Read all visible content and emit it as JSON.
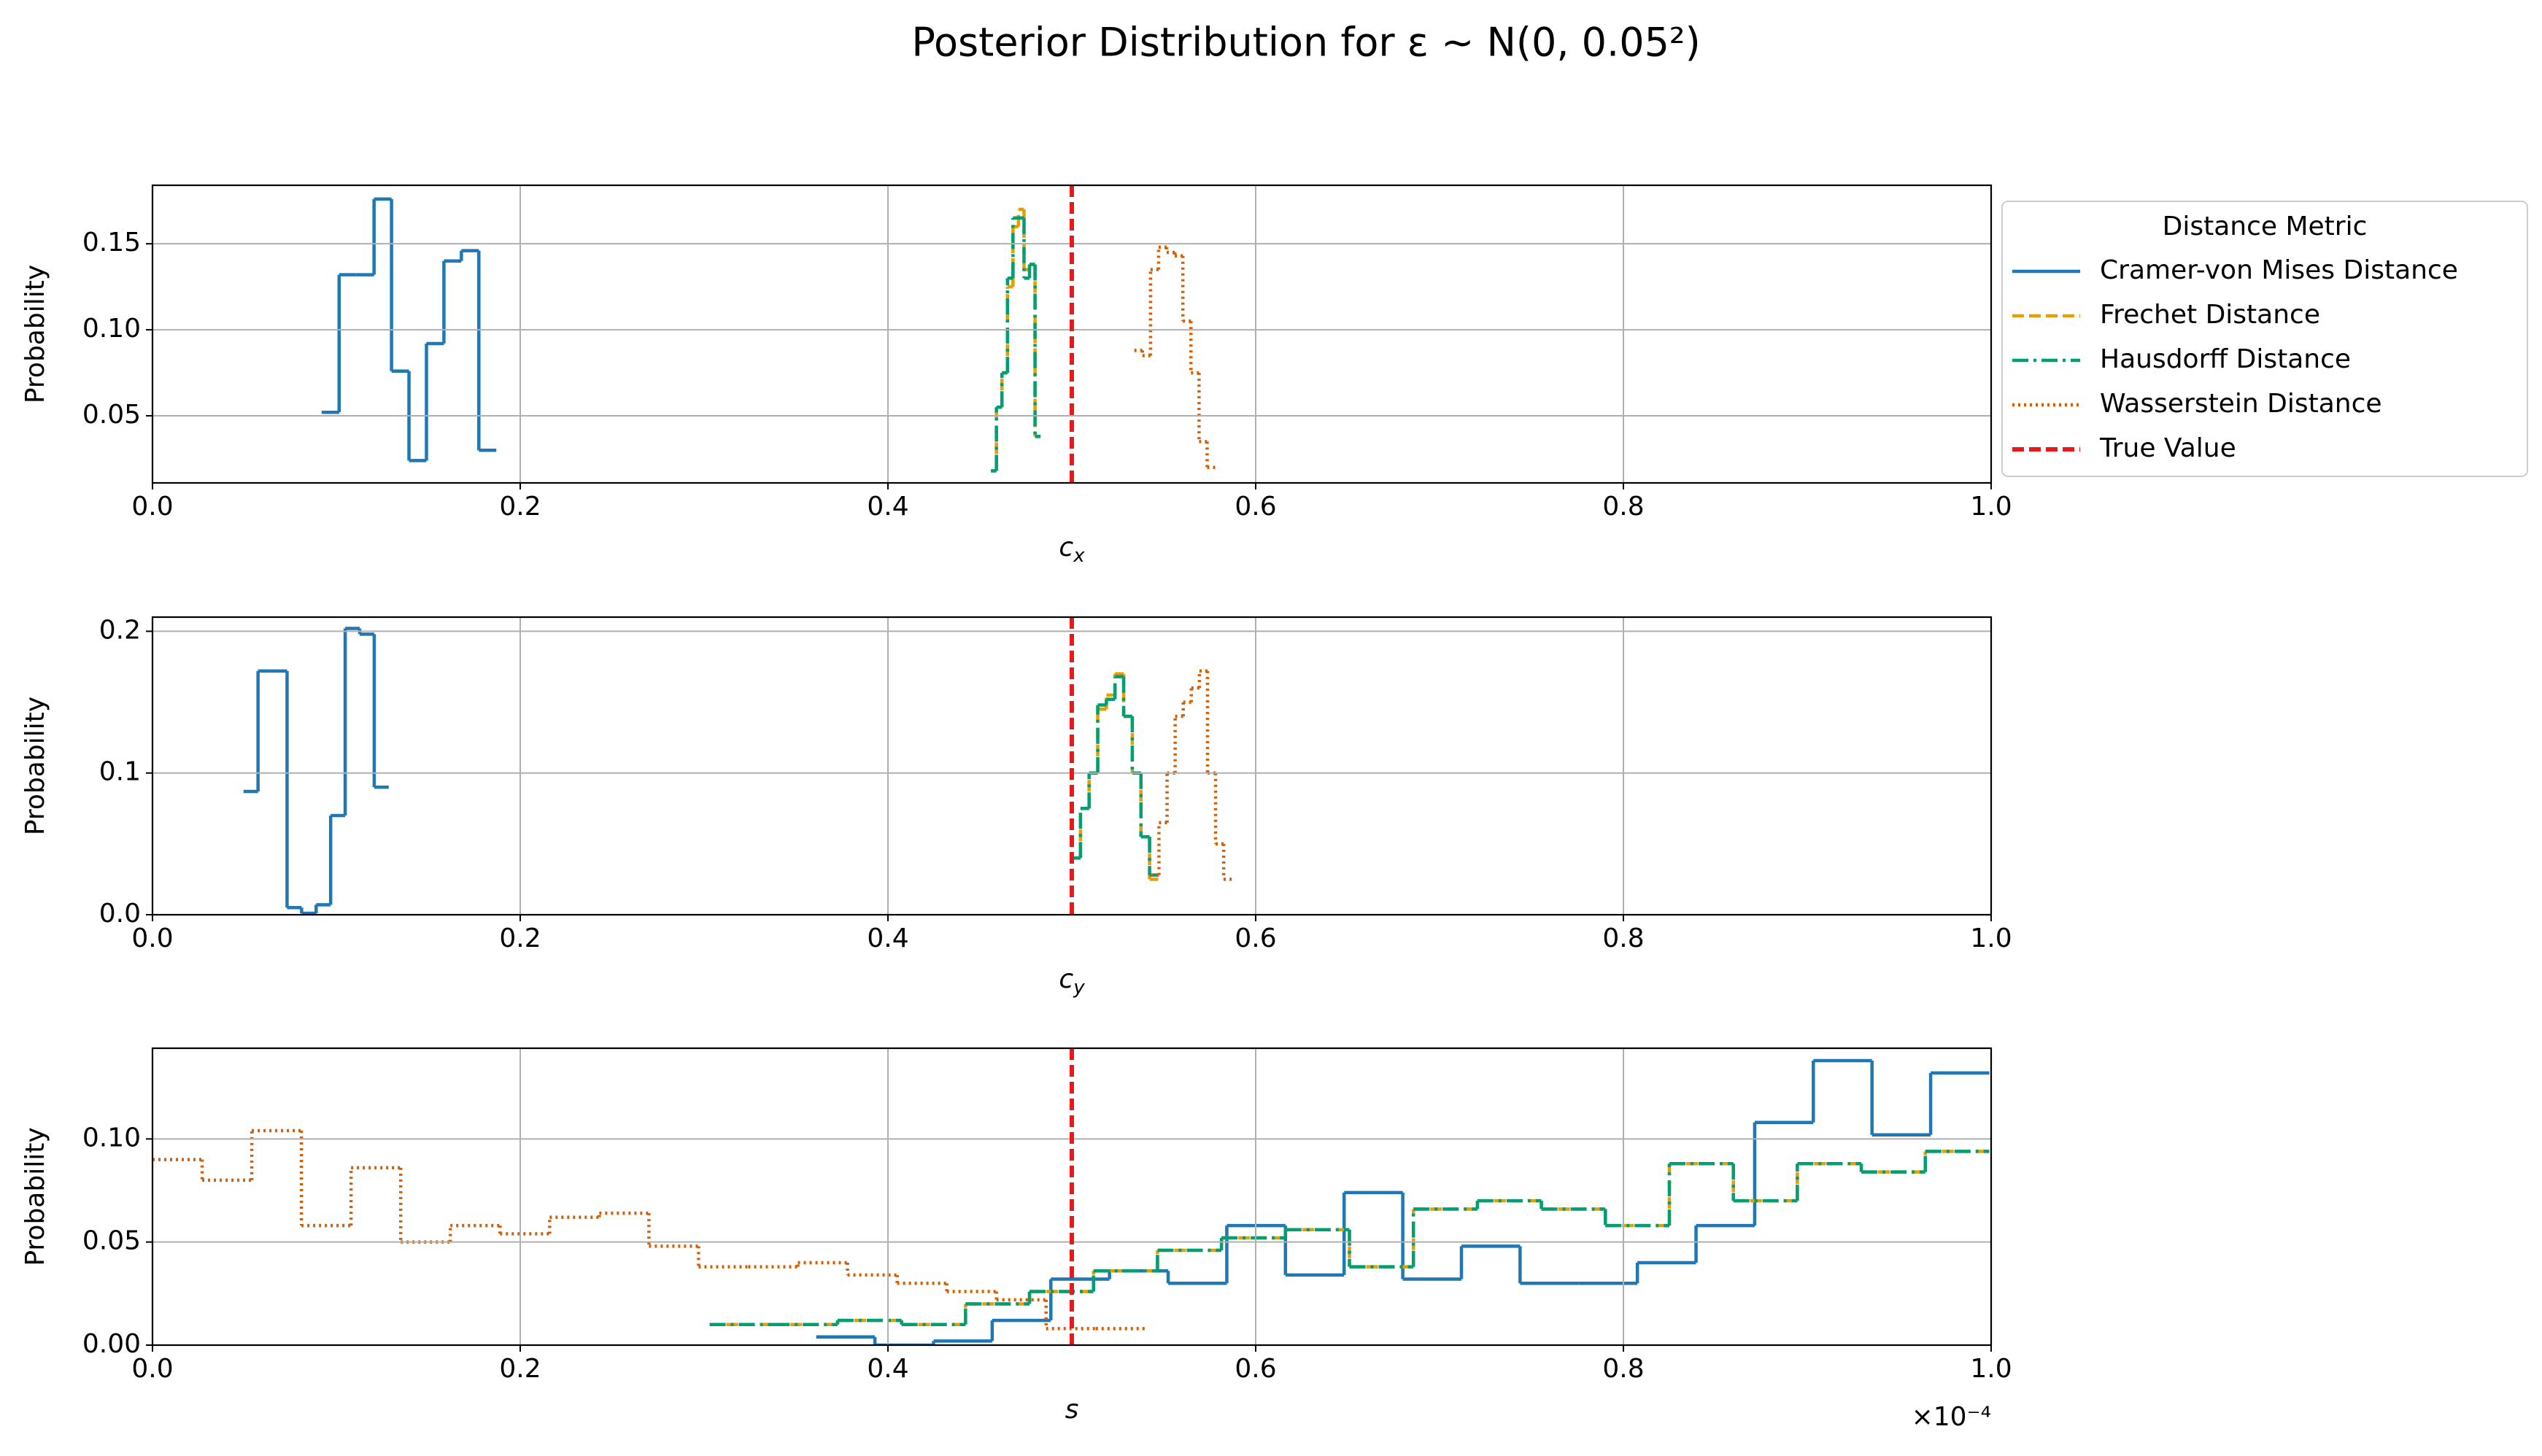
{
  "title": "Posterior Distribution for ε ∼ N(0, 0.05²)",
  "legend": {
    "title": "Distance Metric",
    "location": "outside upper right"
  },
  "chart_data": [
    {
      "type": "step",
      "xlabel": {
        "text": "c",
        "subscript": "x"
      },
      "ylabel": "Probability",
      "grid": true,
      "xlim": [
        0,
        1
      ],
      "ylim": [
        0.011,
        0.184
      ],
      "xticks": [
        {
          "value": 0,
          "label": "0.0"
        },
        0.2,
        0.4,
        0.6,
        0.8,
        {
          "value": 1,
          "label": "1.0"
        }
      ],
      "yticks": [
        0.05,
        {
          "value": 0.1,
          "label": "0.10"
        },
        0.15
      ],
      "reference_line": {
        "value": 0.5,
        "label": "True Value",
        "color": "#e41a1c",
        "linestyle": "dashed"
      },
      "series": [
        {
          "name": "Cramer-von Mises Distance",
          "color": "#1f77b4",
          "linestyle": "solid",
          "bins": [
            0.092,
            0.1015,
            0.111,
            0.1205,
            0.13,
            0.1395,
            0.149,
            0.1585,
            0.168,
            0.1775,
            0.187
          ],
          "values": [
            0.052,
            0.132,
            0.132,
            0.176,
            0.076,
            0.024,
            0.092,
            0.14,
            0.146,
            0.03
          ]
        },
        {
          "name": "Frechet Distance",
          "color": "#e69f00",
          "linestyle": "dashed",
          "bins": [
            0.456,
            0.459,
            0.462,
            0.465,
            0.468,
            0.471,
            0.474,
            0.477,
            0.48,
            0.483
          ],
          "values": [
            0.018,
            0.055,
            0.075,
            0.125,
            0.16,
            0.17,
            0.135,
            0.138,
            0.038
          ]
        },
        {
          "name": "Hausdorff Distance",
          "color": "#009e73",
          "linestyle": "dashdot",
          "bins": [
            0.456,
            0.459,
            0.462,
            0.465,
            0.468,
            0.471,
            0.474,
            0.477,
            0.48,
            0.483
          ],
          "values": [
            0.018,
            0.055,
            0.075,
            0.13,
            0.165,
            0.165,
            0.13,
            0.138,
            0.038
          ]
        },
        {
          "name": "Wasserstein Distance",
          "color": "#d55e00",
          "linestyle": "dotted",
          "bins": [
            0.534,
            0.5384,
            0.5428,
            0.5472,
            0.5516,
            0.556,
            0.5604,
            0.5648,
            0.5692,
            0.5736,
            0.578
          ],
          "values": [
            0.088,
            0.085,
            0.135,
            0.148,
            0.145,
            0.143,
            0.105,
            0.075,
            0.035,
            0.02
          ]
        }
      ]
    },
    {
      "type": "step",
      "xlabel": {
        "text": "c",
        "subscript": "y"
      },
      "ylabel": "Probability",
      "grid": true,
      "xlim": [
        0,
        1
      ],
      "ylim": [
        0,
        0.21
      ],
      "xticks": [
        {
          "value": 0,
          "label": "0.0"
        },
        0.2,
        0.4,
        0.6,
        0.8,
        {
          "value": 1,
          "label": "1.0"
        }
      ],
      "yticks": [
        {
          "value": 0,
          "label": "0.0"
        },
        0.1,
        0.2
      ],
      "reference_line": {
        "value": 0.5,
        "color": "#e41a1c",
        "linestyle": "dashed"
      },
      "series": [
        {
          "color": "#1f77b4",
          "linestyle": "solid",
          "bins": [
            0.0495,
            0.0574,
            0.0653,
            0.0732,
            0.0811,
            0.089,
            0.0969,
            0.1048,
            0.1127,
            0.1206,
            0.1285
          ],
          "values": [
            0.087,
            0.172,
            0.172,
            0.005,
            0.001,
            0.007,
            0.07,
            0.202,
            0.198,
            0.09
          ]
        },
        {
          "color": "#e69f00",
          "linestyle": "dashed",
          "bins": [
            0.5,
            0.5047,
            0.5094,
            0.5141,
            0.5188,
            0.5235,
            0.5282,
            0.5329,
            0.5376,
            0.5423,
            0.547
          ],
          "values": [
            0.04,
            0.075,
            0.1,
            0.145,
            0.155,
            0.17,
            0.14,
            0.1,
            0.055,
            0.025
          ]
        },
        {
          "color": "#009e73",
          "linestyle": "dashdot",
          "bins": [
            0.5,
            0.5047,
            0.5094,
            0.5141,
            0.5188,
            0.5235,
            0.5282,
            0.5329,
            0.5376,
            0.5423,
            0.547
          ],
          "values": [
            0.04,
            0.075,
            0.1,
            0.148,
            0.152,
            0.168,
            0.14,
            0.1,
            0.055,
            0.028
          ]
        },
        {
          "color": "#d55e00",
          "linestyle": "dotted",
          "bins": [
            0.543,
            0.5474,
            0.5518,
            0.5562,
            0.5606,
            0.565,
            0.5694,
            0.5738,
            0.5782,
            0.5826,
            0.587
          ],
          "values": [
            0.028,
            0.065,
            0.1,
            0.14,
            0.15,
            0.16,
            0.172,
            0.1,
            0.05,
            0.025
          ]
        }
      ]
    },
    {
      "type": "step",
      "xlabel": {
        "text": "s"
      },
      "ylabel": "Probability",
      "grid": true,
      "x_offset_label": "×10⁻⁴",
      "xlim": [
        0,
        1
      ],
      "ylim": [
        0,
        0.144
      ],
      "xticks": [
        {
          "value": 0,
          "label": "0.0"
        },
        0.2,
        0.4,
        0.6,
        0.8,
        {
          "value": 1,
          "label": "1.0"
        }
      ],
      "yticks": [
        {
          "value": 0,
          "label": "0.00"
        },
        0.05,
        {
          "value": 0.1,
          "label": "0.10"
        }
      ],
      "reference_line": {
        "value": 0.5,
        "color": "#e41a1c",
        "linestyle": "dashed"
      },
      "series": [
        {
          "color": "#1f77b4",
          "linestyle": "solid",
          "bins": [
            0.361,
            0.3929,
            0.4248,
            0.4567,
            0.4886,
            0.5205,
            0.5524,
            0.5843,
            0.6162,
            0.6481,
            0.68,
            0.7119,
            0.7438,
            0.7757,
            0.8076,
            0.8395,
            0.8714,
            0.9033,
            0.9352,
            0.9671,
            0.999
          ],
          "values": [
            0.004,
            0.0,
            0.002,
            0.012,
            0.032,
            0.036,
            0.03,
            0.058,
            0.034,
            0.074,
            0.032,
            0.048,
            0.03,
            0.03,
            0.04,
            0.058,
            0.108,
            0.138,
            0.102,
            0.132
          ]
        },
        {
          "color": "#e69f00",
          "linestyle": "dashed",
          "bins": [
            0.303,
            0.3378,
            0.3726,
            0.4074,
            0.4422,
            0.477,
            0.5118,
            0.5466,
            0.5814,
            0.6162,
            0.651,
            0.6858,
            0.7206,
            0.7554,
            0.7902,
            0.825,
            0.8598,
            0.8946,
            0.9294,
            0.9642,
            0.999
          ],
          "values": [
            0.01,
            0.01,
            0.012,
            0.01,
            0.02,
            0.026,
            0.036,
            0.046,
            0.052,
            0.056,
            0.038,
            0.066,
            0.07,
            0.066,
            0.058,
            0.088,
            0.07,
            0.088,
            0.084,
            0.094
          ]
        },
        {
          "color": "#009e73",
          "linestyle": "dashdot",
          "bins": [
            0.303,
            0.3378,
            0.3726,
            0.4074,
            0.4422,
            0.477,
            0.5118,
            0.5466,
            0.5814,
            0.6162,
            0.651,
            0.6858,
            0.7206,
            0.7554,
            0.7902,
            0.825,
            0.8598,
            0.8946,
            0.9294,
            0.9642,
            0.999
          ],
          "values": [
            0.01,
            0.01,
            0.012,
            0.01,
            0.02,
            0.026,
            0.036,
            0.046,
            0.052,
            0.056,
            0.038,
            0.066,
            0.07,
            0.066,
            0.058,
            0.088,
            0.07,
            0.088,
            0.084,
            0.094
          ]
        },
        {
          "color": "#d55e00",
          "linestyle": "dotted",
          "bins": [
            0,
            0.027,
            0.054,
            0.081,
            0.108,
            0.135,
            0.162,
            0.189,
            0.216,
            0.243,
            0.27,
            0.297,
            0.324,
            0.351,
            0.378,
            0.405,
            0.432,
            0.459,
            0.486,
            0.513,
            0.54
          ],
          "values": [
            0.09,
            0.08,
            0.104,
            0.058,
            0.086,
            0.05,
            0.058,
            0.054,
            0.062,
            0.064,
            0.048,
            0.038,
            0.038,
            0.04,
            0.034,
            0.03,
            0.026,
            0.022,
            0.008,
            0.008
          ]
        }
      ]
    }
  ]
}
